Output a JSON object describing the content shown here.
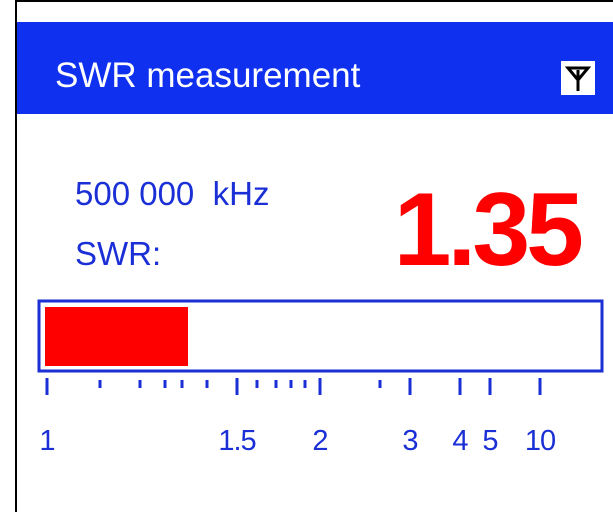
{
  "header": {
    "title": "SWR measurement"
  },
  "readout": {
    "frequency": "500 000  kHz",
    "label": "SWR:",
    "value": 1.35
  },
  "gauge": {
    "value": 1.35,
    "scale": [
      1,
      1.5,
      2,
      3,
      4,
      5,
      10
    ]
  }
}
